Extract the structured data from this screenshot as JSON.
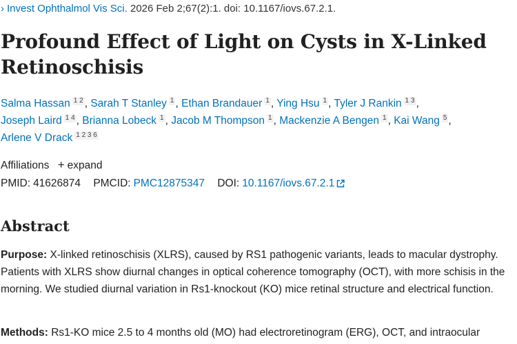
{
  "citation": {
    "chevron": "›",
    "journal": "Invest Ophthalmol Vis Sci.",
    "details": "2026 Feb 2;67(2):1. doi: 10.1167/iovs.67.2.1."
  },
  "title": "Profound Effect of Light on Cysts in X-Linked Retinoschisis",
  "authors": [
    {
      "name": "Salma Hassan",
      "aff": "1 2"
    },
    {
      "name": "Sarah T Stanley",
      "aff": "1"
    },
    {
      "name": "Ethan Brandauer",
      "aff": "1"
    },
    {
      "name": "Ying Hsu",
      "aff": "1"
    },
    {
      "name": "Tyler J Rankin",
      "aff": "1 3"
    },
    {
      "name": "Joseph Laird",
      "aff": "1 4"
    },
    {
      "name": "Brianna Lobeck",
      "aff": "1"
    },
    {
      "name": "Jacob M Thompson",
      "aff": "1"
    },
    {
      "name": "Mackenzie A Bengen",
      "aff": "1"
    },
    {
      "name": "Kai Wang",
      "aff": "5"
    },
    {
      "name": "Arlene V Drack",
      "aff": "1 2 3 6"
    }
  ],
  "affiliations": {
    "label": "Affiliations",
    "plus": "+",
    "expand_label": "expand"
  },
  "ids": {
    "pmid_label": "PMID:",
    "pmid": "41626874",
    "pmcid_label": "PMCID:",
    "pmcid": "PMC12875347",
    "doi_label": "DOI:",
    "doi": "10.1167/iovs.67.2.1"
  },
  "abstract": {
    "heading": "Abstract",
    "purpose_label": "Purpose:",
    "purpose_text": "X-linked retinoschisis (XLRS), caused by RS1 pathogenic variants, leads to macular dystrophy. Patients with XLRS show diurnal changes in optical coherence tomography (OCT), with more schisis in the morning. We studied diurnal variation in Rs1-knockout (KO) mice retinal structure and electrical function.",
    "methods_label": "Methods:",
    "methods_text": "Rs1-KO mice 2.5 to 4 months old (MO) had electroretinogram (ERG), OCT, and intraocular"
  },
  "colors": {
    "link": "#0071bc",
    "text": "#212121"
  },
  "icons": {
    "chevron": "chevron-right-icon",
    "plus": "plus-icon",
    "external": "external-link-icon"
  }
}
